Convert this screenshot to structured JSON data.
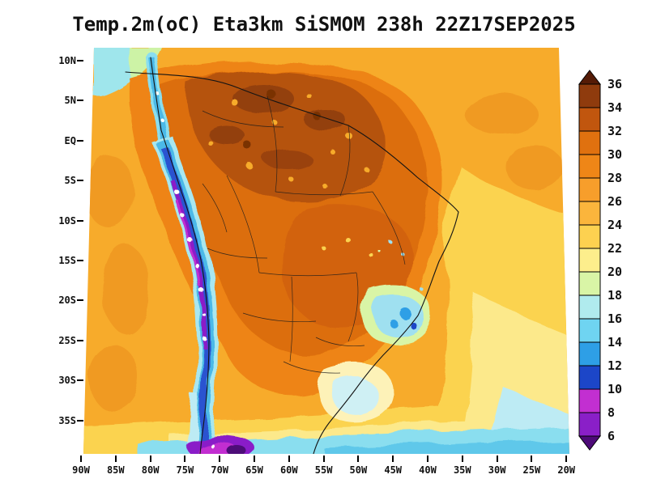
{
  "title": "Temp.2m(oC) Eta3km SiSMOM 238h 22Z17SEP2025",
  "map": {
    "lat_labels": [
      "10N",
      "5N",
      "EQ",
      "5S",
      "10S",
      "15S",
      "20S",
      "25S",
      "30S",
      "35S"
    ],
    "lon_labels": [
      "90W",
      "85W",
      "80W",
      "75W",
      "70W",
      "65W",
      "60W",
      "55W",
      "50W",
      "45W",
      "40W",
      "35W",
      "30W",
      "25W",
      "20W"
    ]
  },
  "chart_data": {
    "type": "heatmap",
    "title": "Temp.2m(oC) Eta3km SiSMOM 238h 22Z17SEP2025",
    "variable": "2-meter air temperature (deg C)",
    "model": "Eta3km SiSMOM",
    "forecast_hour": "238h",
    "valid": "22Z17SEP2025",
    "x_range_deg_lon": [
      "90W",
      "20W"
    ],
    "y_range_deg_lat": [
      "10N",
      "35S"
    ],
    "legend_position": "right",
    "levels_degC": [
      36,
      34,
      32,
      30,
      28,
      26,
      24,
      22,
      20,
      18,
      16,
      14,
      12,
      10,
      8,
      6
    ]
  },
  "colorbar": {
    "levels": [
      "36",
      "34",
      "32",
      "30",
      "28",
      "26",
      "24",
      "22",
      "20",
      "18",
      "16",
      "14",
      "12",
      "10",
      "8",
      "6"
    ],
    "arrow_top_color": "#551B06",
    "arrow_bottom_color": "#4D0A78",
    "segment_colors_top_to_bottom": [
      "#8F3B0D",
      "#C1560E",
      "#E0710F",
      "#EF8617",
      "#F79E2B",
      "#FBB53C",
      "#FDD150",
      "#FDEE8C",
      "#D9F5A6",
      "#B0EBEE",
      "#6FD4F1",
      "#2E9FE6",
      "#1C46C8",
      "#C22FD1",
      "#8A1FC8"
    ]
  }
}
